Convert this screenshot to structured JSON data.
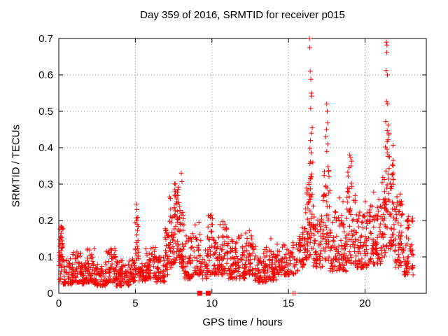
{
  "chart_data": {
    "type": "scatter",
    "title": "Day 359 of 2016, SRMTID for receiver p015",
    "xlabel": "GPS time / hours",
    "ylabel": "SRMTID / TECUs",
    "xlim": [
      0,
      24
    ],
    "ylim": [
      0,
      0.7
    ],
    "xticks": [
      0,
      5,
      10,
      15,
      20
    ],
    "ytick_labels": [
      "0",
      "0.1",
      "0.2",
      "0.3",
      "0.4",
      "0.5",
      "0.6",
      "0.7"
    ],
    "grid": true,
    "legend_position": "none",
    "frame_color": "#000000",
    "grid_color": "#8c8c8c",
    "marker": "plus",
    "marker_color": "#ff0000",
    "series": [
      {
        "name": "srmtid-plus-markers",
        "style": "plus",
        "color": "#ff0000",
        "band_segments": [
          [
            0.02,
            0.28,
            0.03,
            0.185,
            40,
            1.2
          ],
          [
            0.28,
            0.9,
            0.025,
            0.095,
            55,
            1.6
          ],
          [
            0.9,
            1.45,
            0.03,
            0.115,
            48,
            1.6
          ],
          [
            1.45,
            1.85,
            0.025,
            0.085,
            36,
            1.6
          ],
          [
            1.85,
            2.35,
            0.03,
            0.125,
            45,
            1.6
          ],
          [
            2.35,
            3.1,
            0.02,
            0.085,
            62,
            1.7
          ],
          [
            3.1,
            3.75,
            0.03,
            0.125,
            55,
            1.6
          ],
          [
            3.75,
            4.6,
            0.02,
            0.09,
            70,
            1.7
          ],
          [
            4.6,
            4.98,
            0.03,
            0.095,
            32,
            1.6
          ],
          [
            4.98,
            5.22,
            0.05,
            0.21,
            26,
            1.2
          ],
          [
            5.22,
            5.65,
            0.03,
            0.1,
            36,
            1.6
          ],
          [
            5.65,
            6.35,
            0.04,
            0.13,
            60,
            1.6
          ],
          [
            6.35,
            6.92,
            0.03,
            0.105,
            48,
            1.6
          ],
          [
            6.92,
            7.22,
            0.05,
            0.18,
            30,
            1.3
          ],
          [
            7.22,
            7.55,
            0.07,
            0.27,
            42,
            1.25
          ],
          [
            7.55,
            7.98,
            0.08,
            0.305,
            55,
            1.25
          ],
          [
            7.98,
            8.22,
            0.06,
            0.23,
            26,
            1.3
          ],
          [
            8.22,
            8.75,
            0.04,
            0.165,
            46,
            1.5
          ],
          [
            8.75,
            9.3,
            0.05,
            0.19,
            40,
            1.5
          ],
          [
            9.3,
            9.68,
            0.04,
            0.125,
            18,
            1.5
          ],
          [
            9.68,
            10.15,
            0.05,
            0.215,
            40,
            1.4
          ],
          [
            10.15,
            11.05,
            0.05,
            0.195,
            78,
            1.5
          ],
          [
            11.05,
            12.2,
            0.04,
            0.16,
            100,
            1.6
          ],
          [
            12.2,
            12.78,
            0.05,
            0.17,
            46,
            1.5
          ],
          [
            12.78,
            13.6,
            0.03,
            0.13,
            70,
            1.6
          ],
          [
            13.6,
            14.2,
            0.035,
            0.12,
            50,
            1.6
          ],
          [
            14.2,
            15.12,
            0.05,
            0.135,
            66,
            1.6
          ],
          [
            15.12,
            15.66,
            0.05,
            0.14,
            24,
            1.5
          ],
          [
            15.66,
            16.12,
            0.07,
            0.19,
            42,
            1.4
          ],
          [
            16.12,
            16.36,
            0.09,
            0.31,
            30,
            1.2
          ],
          [
            16.36,
            16.62,
            0.1,
            0.375,
            36,
            1.15
          ],
          [
            16.62,
            17.26,
            0.07,
            0.225,
            56,
            1.5
          ],
          [
            17.26,
            17.72,
            0.09,
            0.335,
            46,
            1.2
          ],
          [
            17.72,
            18.76,
            0.06,
            0.225,
            92,
            1.55
          ],
          [
            18.76,
            19.36,
            0.08,
            0.335,
            56,
            1.25
          ],
          [
            19.36,
            20.2,
            0.07,
            0.225,
            76,
            1.5
          ],
          [
            20.2,
            21.12,
            0.08,
            0.245,
            82,
            1.5
          ],
          [
            21.12,
            21.36,
            0.1,
            0.34,
            30,
            1.2
          ],
          [
            21.36,
            21.86,
            0.12,
            0.45,
            56,
            1.2
          ],
          [
            21.86,
            22.5,
            0.07,
            0.275,
            62,
            1.4
          ],
          [
            22.5,
            23.15,
            0.05,
            0.215,
            56,
            1.5
          ]
        ],
        "peak_points": [
          [
            5.06,
            0.245
          ],
          [
            5.1,
            0.23
          ],
          [
            5.12,
            0.19
          ],
          [
            7.6,
            0.3
          ],
          [
            8.0,
            0.33
          ],
          [
            8.04,
            0.307
          ],
          [
            9.15,
            0.195
          ],
          [
            9.95,
            0.215
          ],
          [
            10.04,
            0.205
          ],
          [
            10.72,
            0.197
          ],
          [
            10.85,
            0.19
          ],
          [
            12.45,
            0.172
          ],
          [
            13.85,
            0.15
          ],
          [
            16.37,
            0.7
          ],
          [
            16.385,
            0.675
          ],
          [
            16.42,
            0.61
          ],
          [
            16.46,
            0.588
          ],
          [
            16.5,
            0.55
          ],
          [
            16.52,
            0.542
          ],
          [
            16.45,
            0.508
          ],
          [
            16.55,
            0.455
          ],
          [
            16.5,
            0.44
          ],
          [
            16.44,
            0.42
          ],
          [
            16.4,
            0.398
          ],
          [
            16.48,
            0.386
          ],
          [
            17.5,
            0.52
          ],
          [
            17.53,
            0.5
          ],
          [
            17.56,
            0.468
          ],
          [
            17.48,
            0.45
          ],
          [
            17.44,
            0.43
          ],
          [
            17.57,
            0.41
          ],
          [
            17.5,
            0.39
          ],
          [
            17.58,
            0.348
          ],
          [
            17.63,
            0.337
          ],
          [
            18.32,
            0.262
          ],
          [
            18.56,
            0.252
          ],
          [
            18.9,
            0.322
          ],
          [
            18.96,
            0.345
          ],
          [
            19.0,
            0.38
          ],
          [
            19.06,
            0.374
          ],
          [
            19.12,
            0.363
          ],
          [
            19.08,
            0.35
          ],
          [
            20.02,
            0.252
          ],
          [
            20.56,
            0.278
          ],
          [
            20.9,
            0.258
          ],
          [
            21.4,
            0.69
          ],
          [
            21.43,
            0.682
          ],
          [
            21.42,
            0.662
          ],
          [
            21.38,
            0.612
          ],
          [
            21.46,
            0.6
          ],
          [
            21.41,
            0.527
          ],
          [
            21.47,
            0.52
          ],
          [
            21.35,
            0.472
          ],
          [
            21.52,
            0.462
          ],
          [
            21.45,
            0.447
          ],
          [
            21.56,
            0.44
          ],
          [
            21.5,
            0.422
          ],
          [
            21.33,
            0.402
          ],
          [
            22.08,
            0.265
          ],
          [
            22.3,
            0.242
          ]
        ],
        "zero_points": [
          [
            15.3,
            0
          ],
          [
            15.43,
            0
          ]
        ]
      },
      {
        "name": "flagged-zero-squares",
        "style": "filled-square",
        "color": "#ff0000",
        "points": [
          [
            9.2,
            0
          ],
          [
            9.76,
            0
          ]
        ]
      }
    ]
  }
}
